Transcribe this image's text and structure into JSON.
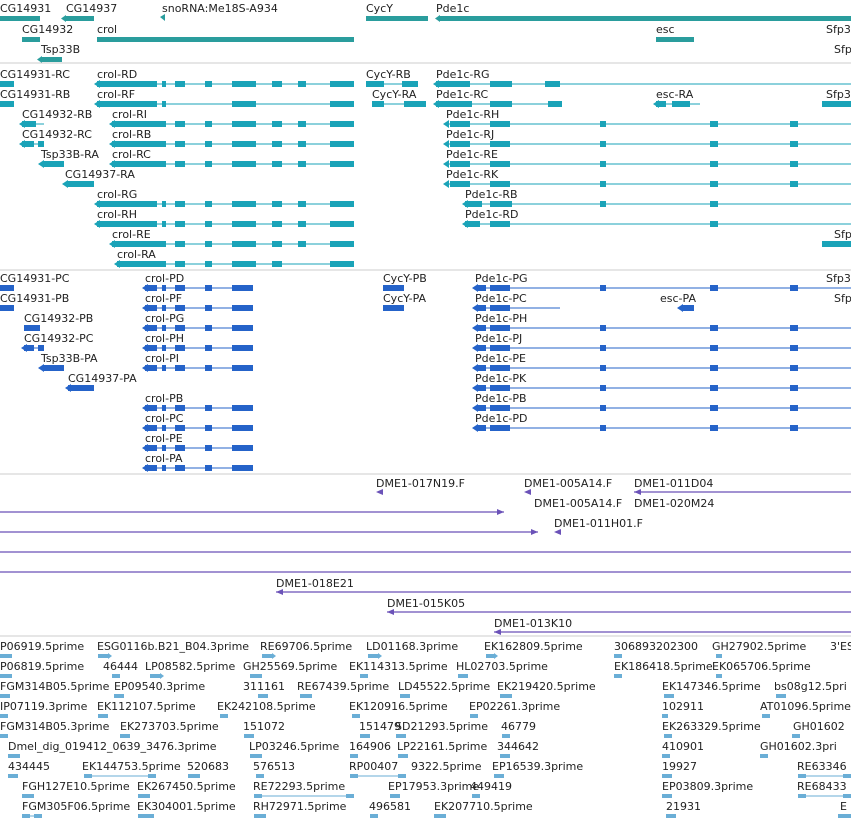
{
  "colors": {
    "gene": "#2a9d9d",
    "transcript": "#1aa3b8",
    "cds": "#2563c9",
    "clone": "#6b52b8",
    "est": "#6aaed6",
    "label": "#222222",
    "separator": "#cccccc"
  },
  "tracks": {
    "genes": {
      "items": [
        {
          "label": "CG14931",
          "strand": "-"
        },
        {
          "label": "CG14937",
          "strand": "-"
        },
        {
          "label": "snoRNA:Me18S-A934",
          "strand": "-"
        },
        {
          "label": "CycY",
          "strand": "+"
        },
        {
          "label": "Pde1c",
          "strand": "-"
        },
        {
          "label": "CG14932",
          "strand": "-"
        },
        {
          "label": "crol",
          "strand": "+"
        },
        {
          "label": "esc",
          "strand": "+"
        },
        {
          "label": "Sfp3",
          "strand": "+"
        },
        {
          "label": "Tsp33B",
          "strand": "-"
        },
        {
          "label": "Sfp",
          "strand": "+"
        }
      ]
    },
    "transcripts": {
      "items": [
        {
          "label": "CG14931-RC"
        },
        {
          "label": "crol-RD"
        },
        {
          "label": "CycY-RB"
        },
        {
          "label": "Pde1c-RG"
        },
        {
          "label": "CG14931-RB"
        },
        {
          "label": "crol-RF"
        },
        {
          "label": "CycY-RA"
        },
        {
          "label": "Pde1c-RC"
        },
        {
          "label": "esc-RA"
        },
        {
          "label": "Sfp3"
        },
        {
          "label": "CG14932-RB"
        },
        {
          "label": "crol-RI"
        },
        {
          "label": "Pde1c-RH"
        },
        {
          "label": "CG14932-RC"
        },
        {
          "label": "crol-RB"
        },
        {
          "label": "Pde1c-RJ"
        },
        {
          "label": "Tsp33B-RA"
        },
        {
          "label": "crol-RC"
        },
        {
          "label": "Pde1c-RE"
        },
        {
          "label": "CG14937-RA"
        },
        {
          "label": "Pde1c-RK"
        },
        {
          "label": "crol-RG"
        },
        {
          "label": "Pde1c-RB"
        },
        {
          "label": "crol-RH"
        },
        {
          "label": "Pde1c-RD"
        },
        {
          "label": "crol-RE"
        },
        {
          "label": "Sfp"
        },
        {
          "label": "crol-RA"
        }
      ]
    },
    "cds": {
      "items": [
        {
          "label": "CG14931-PC"
        },
        {
          "label": "crol-PD"
        },
        {
          "label": "CycY-PB"
        },
        {
          "label": "Pde1c-PG"
        },
        {
          "label": "Sfp3"
        },
        {
          "label": "CG14931-PB"
        },
        {
          "label": "crol-PF"
        },
        {
          "label": "CycY-PA"
        },
        {
          "label": "Pde1c-PC"
        },
        {
          "label": "esc-PA"
        },
        {
          "label": "Sfp"
        },
        {
          "label": "CG14932-PB"
        },
        {
          "label": "crol-PG"
        },
        {
          "label": "Pde1c-PH"
        },
        {
          "label": "CG14932-PC"
        },
        {
          "label": "crol-PH"
        },
        {
          "label": "Pde1c-PJ"
        },
        {
          "label": "Tsp33B-PA"
        },
        {
          "label": "crol-PI"
        },
        {
          "label": "Pde1c-PE"
        },
        {
          "label": "CG14937-PA"
        },
        {
          "label": "Pde1c-PK"
        },
        {
          "label": "crol-PB"
        },
        {
          "label": "Pde1c-PB"
        },
        {
          "label": "crol-PC"
        },
        {
          "label": "Pde1c-PD"
        },
        {
          "label": "crol-PE"
        },
        {
          "label": "crol-PA"
        }
      ]
    },
    "clones": {
      "items": [
        {
          "label": "DME1-017N19.F"
        },
        {
          "label": "DME1-005A14.F"
        },
        {
          "label": "DME1-011D04"
        },
        {
          "label": "DME1-005A14.F"
        },
        {
          "label": "DME1-020M24"
        },
        {
          "label": "DME1-011H01.F"
        },
        {
          "label": "DME1-018E21"
        },
        {
          "label": "DME1-015K05"
        },
        {
          "label": "DME1-013K10"
        }
      ]
    },
    "ests": {
      "items": [
        {
          "label": "P06919.5prime"
        },
        {
          "label": "ESG0116b.B21_B04.3prime"
        },
        {
          "label": "RE69706.5prime"
        },
        {
          "label": "LD01168.3prime"
        },
        {
          "label": "EK162809.5prime"
        },
        {
          "label": "306893202300"
        },
        {
          "label": "GH27902.5prime"
        },
        {
          "label": "3'ES"
        },
        {
          "label": "P06819.5prime"
        },
        {
          "label": "46444"
        },
        {
          "label": "LP08582.5prime"
        },
        {
          "label": "GH25569.5prime"
        },
        {
          "label": "EK114313.5prime"
        },
        {
          "label": "HL02703.5prime"
        },
        {
          "label": "EK186418.5prime"
        },
        {
          "label": "EK065706.5prime"
        },
        {
          "label": "FGM314B05.5prime"
        },
        {
          "label": "EP09540.3prime"
        },
        {
          "label": "311161"
        },
        {
          "label": "RE67439.5prime"
        },
        {
          "label": "LD45522.5prime"
        },
        {
          "label": "EK219420.5prime"
        },
        {
          "label": "EK147346.5prime"
        },
        {
          "label": "bs08g12.5pri"
        },
        {
          "label": "IP07119.3prime"
        },
        {
          "label": "EK112107.5prime"
        },
        {
          "label": "EK242108.5prime"
        },
        {
          "label": "EK120916.5prime"
        },
        {
          "label": "EP02261.3prime"
        },
        {
          "label": "102911"
        },
        {
          "label": "AT01096.5prime"
        },
        {
          "label": "FGM314B05.3prime"
        },
        {
          "label": "EK273703.5prime"
        },
        {
          "label": "151072"
        },
        {
          "label": "151479"
        },
        {
          "label": "SD21293.5prime"
        },
        {
          "label": "46779"
        },
        {
          "label": "EK263329.5prime"
        },
        {
          "label": "GH01602"
        },
        {
          "label": "Dmel_dig_019412_0639_3476.3prime"
        },
        {
          "label": "LP03246.5prime"
        },
        {
          "label": "164906"
        },
        {
          "label": "LP22161.5prime"
        },
        {
          "label": "344642"
        },
        {
          "label": "410901"
        },
        {
          "label": "GH01602.3pri"
        },
        {
          "label": "434445"
        },
        {
          "label": "EK144753.5prime"
        },
        {
          "label": "520683"
        },
        {
          "label": "576513"
        },
        {
          "label": "RP00407"
        },
        {
          "label": "9322.5prime"
        },
        {
          "label": "EP16539.3prime"
        },
        {
          "label": "19927"
        },
        {
          "label": "RE63346"
        },
        {
          "label": "FGH127E10.5prime"
        },
        {
          "label": "EK267450.5prime"
        },
        {
          "label": "RE72293.5prime"
        },
        {
          "label": "EP17953.3prime"
        },
        {
          "label": "449419"
        },
        {
          "label": "EP03809.3prime"
        },
        {
          "label": "RE68433"
        },
        {
          "label": "FGM305F06.5prime"
        },
        {
          "label": "EK304001.5prime"
        },
        {
          "label": "RH72971.5prime"
        },
        {
          "label": "496581"
        },
        {
          "label": "EK207710.5prime"
        },
        {
          "label": "21931"
        },
        {
          "label": "E"
        }
      ]
    }
  }
}
